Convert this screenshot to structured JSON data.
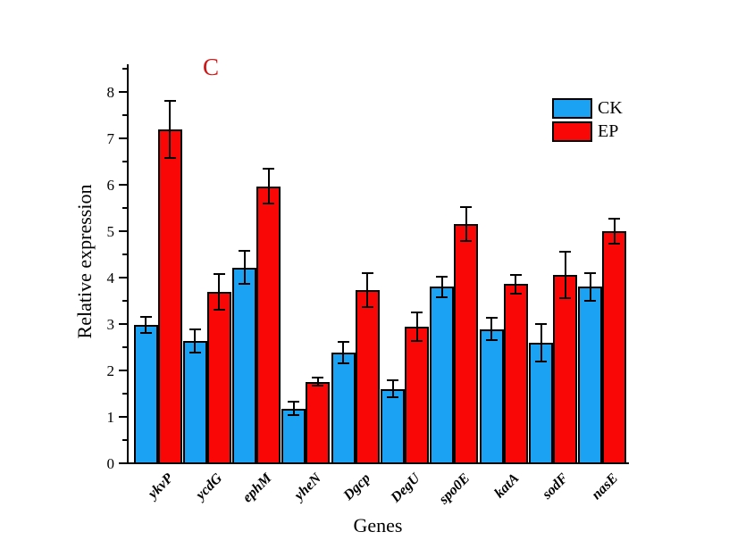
{
  "chart_data": {
    "type": "bar",
    "panel_label": "C",
    "panel_label_color": "#cf1616",
    "xlabel": "Genes",
    "ylabel": "Relative expression",
    "categories": [
      "ykvP",
      "ycdG",
      "ephM",
      "yheN",
      "Dgcp",
      "DegU",
      "spo0E",
      "katA",
      "sodF",
      "nasE"
    ],
    "series": [
      {
        "name": "CK",
        "color": "#1ca2f3",
        "values": [
          2.98,
          2.63,
          4.22,
          1.18,
          2.39,
          1.6,
          3.8,
          2.89,
          2.6,
          3.8
        ],
        "errors": [
          0.17,
          0.25,
          0.36,
          0.14,
          0.23,
          0.18,
          0.23,
          0.24,
          0.4,
          0.3
        ]
      },
      {
        "name": "EP",
        "color": "#f90606",
        "values": [
          7.2,
          3.69,
          5.97,
          1.76,
          3.73,
          2.94,
          5.16,
          3.86,
          4.06,
          5.01
        ],
        "errors": [
          0.62,
          0.38,
          0.37,
          0.08,
          0.36,
          0.31,
          0.37,
          0.2,
          0.5,
          0.27
        ]
      }
    ],
    "ylim": [
      0,
      8.6
    ],
    "ytick_major_step": 1,
    "ytick_minor_step": 0.5,
    "ytick_labels": [
      "0",
      "1",
      "2",
      "3",
      "4",
      "5",
      "6",
      "7",
      "8"
    ],
    "grid": false,
    "legend_position": "top-right",
    "error_bars": true
  }
}
